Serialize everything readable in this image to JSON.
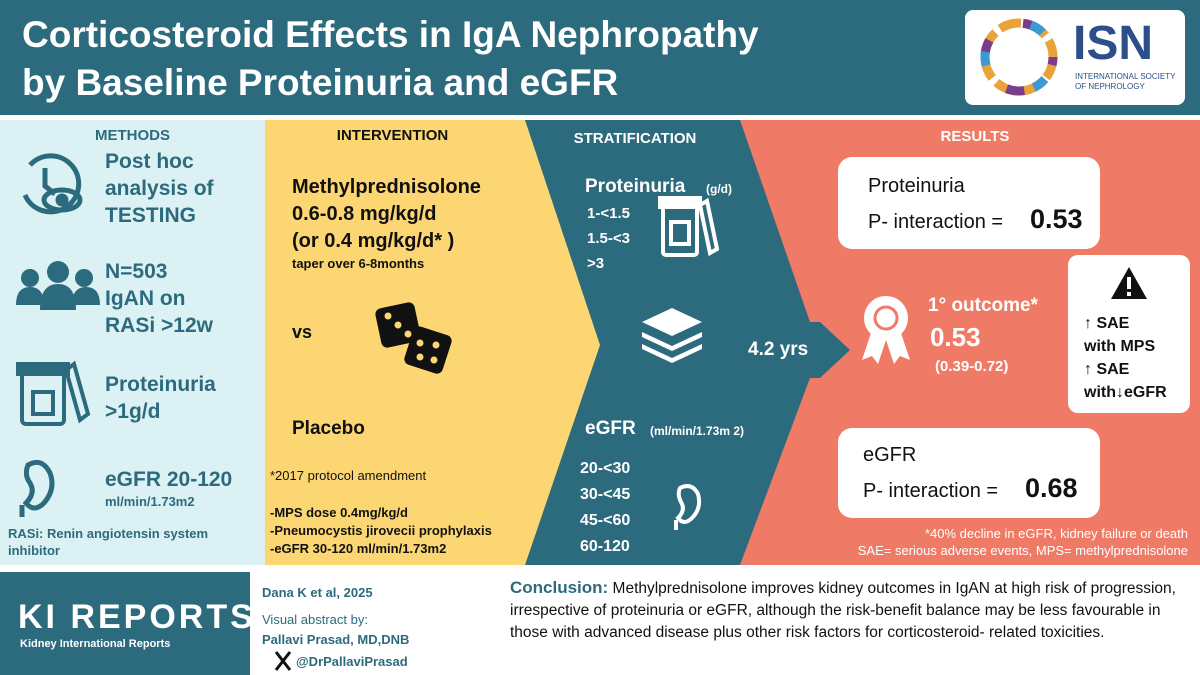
{
  "header": {
    "title_lines": [
      "Corticosteroid Effects in IgA Nephropathy",
      "by Baseline Proteinuria and eGFR"
    ],
    "logo": {
      "name": "ISN",
      "subtitle_lines": [
        "INTERNATIONAL SOCIETY",
        "OF NEPHROLOGY"
      ]
    }
  },
  "methods": {
    "heading": "METHODS",
    "items": [
      {
        "lines": [
          "Post hoc",
          "analysis of",
          "TESTING"
        ]
      },
      {
        "lines": [
          "N=503",
          "IgAN on",
          "RASi >12w"
        ]
      },
      {
        "lines": [
          "Proteinuria",
          ">1g/d"
        ]
      },
      {
        "lines": [
          "eGFR 20-120",
          "ml/min/1.73m2"
        ]
      }
    ],
    "note": "RASi: Renin angiotensin system inhibitor"
  },
  "intervention": {
    "heading": "INTERVENTION",
    "drug_lines": [
      "Methylprednisolone",
      "0.6-0.8 mg/kg/d",
      "(or 0.4 mg/kg/d* )"
    ],
    "taper": "taper over 6-8months",
    "vs": "vs",
    "placebo": "Placebo",
    "amendment_title": "*2017 protocol amendment",
    "amendment_items": [
      "-MPS dose 0.4mg/kg/d",
      "-Pneumocystis jirovecii prophylaxis",
      "-eGFR 30-120 ml/min/1.73m2"
    ]
  },
  "stratification": {
    "heading": "STRATIFICATION",
    "proteinuria": {
      "label": "Proteinuria",
      "unit": "(g/d)",
      "levels": [
        "1-<1.5",
        "1.5-<3",
        ">3"
      ]
    },
    "duration": "4.2 yrs",
    "egfr": {
      "label": "eGFR",
      "unit": "(ml/min/1.73m 2)",
      "levels": [
        "20-<30",
        "30-<45",
        "45-<60",
        "60-120"
      ]
    }
  },
  "results": {
    "heading": "RESULTS",
    "proteinuria_box": {
      "title": "Proteinuria",
      "label": "P- interaction =",
      "value": "0.53"
    },
    "outcome": {
      "label": "1° outcome*",
      "estimate": "0.53",
      "ci": "(0.39-0.72)"
    },
    "safety_lines": [
      "↑ SAE",
      "with MPS",
      "↑ SAE",
      "with↓eGFR"
    ],
    "egfr_box": {
      "title": "eGFR",
      "label": "P- interaction =",
      "value": "0.68"
    },
    "footnotes": [
      "*40% decline in eGFR, kidney failure or death",
      "SAE= serious adverse events, MPS= methylprednisolone"
    ]
  },
  "footer": {
    "journal": "KI REPORTS",
    "journal_subtitle": "Kidney International Reports",
    "citation": "Dana K et al, 2025",
    "credit_label": "Visual abstract by:",
    "author": "Pallavi Prasad, MD,DNB",
    "handle": "@DrPallaviPrasad",
    "conclusion_label": "Conclusion:",
    "conclusion_text": "Methylprednisolone improves kidney outcomes in IgAN at high risk of progression, irrespective of proteinuria or eGFR, although the risk-benefit balance may be less favourable in those with advanced disease plus other risk factors for corticosteroid- related toxicities."
  }
}
